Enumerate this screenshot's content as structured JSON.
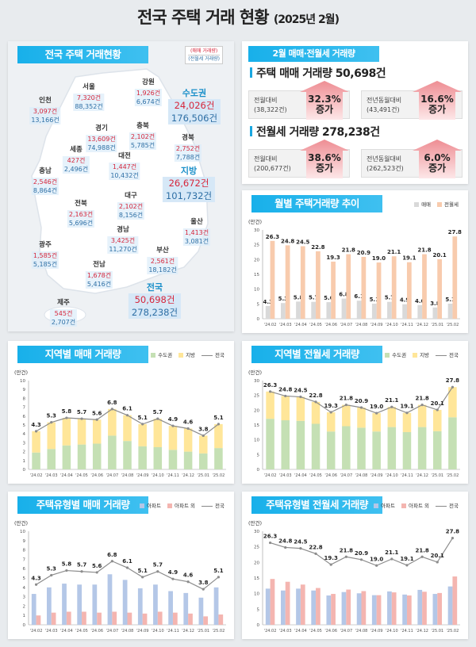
{
  "title": {
    "main": "전국 주택 거래 현황",
    "sub": "(2025년 2월)"
  },
  "map_panel": {
    "banner": "전국 주택 거래현황",
    "legend_sale": "(매매 거래량)",
    "legend_rent": "(전월세 거래량)",
    "regions": [
      {
        "name": "인천",
        "sale": "3,097건",
        "rent": "13,166건"
      },
      {
        "name": "서울",
        "sale": "7,320건",
        "rent": "88,352건"
      },
      {
        "name": "강원",
        "sale": "1,926건",
        "rent": "6,674건"
      },
      {
        "name": "경기",
        "sale": "13,609건",
        "rent": "74,988건"
      },
      {
        "name": "충북",
        "sale": "2,102건",
        "rent": "5,785건"
      },
      {
        "name": "경북",
        "sale": "2,752건",
        "rent": "7,788건"
      },
      {
        "name": "세종",
        "sale": "427건",
        "rent": "2,496건"
      },
      {
        "name": "대전",
        "sale": "1,447건",
        "rent": "10,432건"
      },
      {
        "name": "충남",
        "sale": "2,546건",
        "rent": "8,864건"
      },
      {
        "name": "대구",
        "sale": "2,102건",
        "rent": "8,156건"
      },
      {
        "name": "전북",
        "sale": "2,163건",
        "rent": "5,696건"
      },
      {
        "name": "울산",
        "sale": "1,413건",
        "rent": "3,081건"
      },
      {
        "name": "경남",
        "sale": "3,425건",
        "rent": "11,270건"
      },
      {
        "name": "광주",
        "sale": "1,585건",
        "rent": "5,185건"
      },
      {
        "name": "부산",
        "sale": "2,561건",
        "rent": "18,182건"
      },
      {
        "name": "전남",
        "sale": "1,678건",
        "rent": "5,416건"
      },
      {
        "name": "제주",
        "sale": "545건",
        "rent": "2,707건"
      }
    ],
    "totals": [
      {
        "name": "수도권",
        "sale": "24,026건",
        "rent": "176,506건"
      },
      {
        "name": "지방",
        "sale": "26,672건",
        "rent": "101,732건"
      },
      {
        "name": "전국",
        "sale": "50,698건",
        "rent": "278,238건"
      }
    ]
  },
  "summary": {
    "banner": "2월 매매·전월세 거래량",
    "sale_heading": "주택 매매 거래량 50,698건",
    "rent_heading": "전월세 거래량 278,238건",
    "boxes": [
      {
        "label": "전월대비",
        "base": "(38,322건)",
        "pct": "32.3%",
        "dir": "증가"
      },
      {
        "label": "전년동월대비",
        "base": "(43,491건)",
        "pct": "16.6%",
        "dir": "증가"
      },
      {
        "label": "전월대비",
        "base": "(200,677건)",
        "pct": "38.6%",
        "dir": "증가"
      },
      {
        "label": "전년동월대비",
        "base": "(262,523건)",
        "pct": "6.0%",
        "dir": "증가"
      }
    ]
  },
  "colors": {
    "accent": "#18b0ea",
    "sale_red": "#d6263b",
    "rent_blue": "#2e6fa5",
    "arrow": "#f2a5a8"
  },
  "chart_data": [
    {
      "type": "bar",
      "title": "월별 주택거래량 추이",
      "ylabel": "(만건)",
      "ylim": [
        0,
        30
      ],
      "ystep": 5,
      "grid": false,
      "legend": "top-right",
      "categories": [
        "'24.02",
        "'24.03",
        "'24.04",
        "'24.05",
        "'24.06",
        "'24.07",
        "'24.08",
        "'24.09",
        "'24.10",
        "'24.11",
        "'24.12",
        "'25.01",
        "'25.02"
      ],
      "series": [
        {
          "name": "매매",
          "color": "#d9d9d9",
          "values": [
            4.3,
            5.3,
            5.8,
            5.7,
            5.6,
            6.8,
            6.1,
            5.1,
            5.7,
            4.9,
            4.6,
            3.8,
            5.1
          ]
        },
        {
          "name": "전월세",
          "color": "#f8cbad",
          "values": [
            26.3,
            24.8,
            24.5,
            22.8,
            19.3,
            21.8,
            20.9,
            19.0,
            21.1,
            19.1,
            21.8,
            20.1,
            27.8
          ]
        }
      ]
    },
    {
      "type": "stacked-bar+line",
      "title": "지역별 매매 거래량",
      "ylabel": "(만건)",
      "ylim": [
        0,
        10
      ],
      "ystep": 1,
      "grid": false,
      "legend": "top-right",
      "categories": [
        "'24.02",
        "'24.03",
        "'24.04",
        "'24.05",
        "'24.06",
        "'24.07",
        "'24.08",
        "'24.09",
        "'24.10",
        "'24.11",
        "'24.12",
        "'25.01",
        "'25.02"
      ],
      "series": [
        {
          "name": "수도권",
          "color": "#c5e0b4",
          "values": [
            1.9,
            2.3,
            2.7,
            2.8,
            2.9,
            3.8,
            3.2,
            2.6,
            2.5,
            2.2,
            2.0,
            1.8,
            2.4
          ]
        },
        {
          "name": "지방",
          "color": "#ffe699",
          "values": [
            2.4,
            3.0,
            3.1,
            2.9,
            2.7,
            3.0,
            2.9,
            2.5,
            3.2,
            2.7,
            2.6,
            2.0,
            2.7
          ]
        }
      ],
      "line": {
        "name": "전국",
        "color": "#8c8c8c",
        "values": [
          4.3,
          5.3,
          5.8,
          5.7,
          5.6,
          6.8,
          6.1,
          5.1,
          5.7,
          4.9,
          4.6,
          3.8,
          5.1
        ]
      }
    },
    {
      "type": "stacked-bar+line",
      "title": "지역별 전월세 거래량",
      "ylabel": "(만건)",
      "ylim": [
        0,
        30
      ],
      "ystep": 5,
      "grid": false,
      "legend": "top-right",
      "categories": [
        "'24.02",
        "'24.03",
        "'24.04",
        "'24.05",
        "'24.06",
        "'24.07",
        "'24.08",
        "'24.09",
        "'24.10",
        "'24.11",
        "'24.12",
        "'25.01",
        "'25.02"
      ],
      "series": [
        {
          "name": "수도권",
          "color": "#c5e0b4",
          "values": [
            17.1,
            16.6,
            16.4,
            15.4,
            12.8,
            14.6,
            14.1,
            12.8,
            14.3,
            12.6,
            14.3,
            12.9,
            17.6
          ]
        },
        {
          "name": "지방",
          "color": "#ffe699",
          "values": [
            9.2,
            8.2,
            8.1,
            7.4,
            6.5,
            7.2,
            6.8,
            6.2,
            6.8,
            6.5,
            7.5,
            7.2,
            10.2
          ]
        }
      ],
      "line": {
        "name": "전국",
        "color": "#8c8c8c",
        "values": [
          26.3,
          24.8,
          24.5,
          22.8,
          19.3,
          21.8,
          20.9,
          19.0,
          21.1,
          19.1,
          21.8,
          20.1,
          27.8
        ]
      }
    },
    {
      "type": "bar+line",
      "title": "주택유형별 매매 거래량",
      "ylabel": "(만건)",
      "ylim": [
        0,
        10
      ],
      "ystep": 1,
      "grid": false,
      "legend": "top-right",
      "categories": [
        "'24.02",
        "'24.03",
        "'24.04",
        "'24.05",
        "'24.06",
        "'24.07",
        "'24.08",
        "'24.09",
        "'24.10",
        "'24.11",
        "'24.12",
        "'25.01",
        "'25.02"
      ],
      "series": [
        {
          "name": "아파트",
          "color": "#b4c7e7",
          "values": [
            3.3,
            4.0,
            4.4,
            4.3,
            4.3,
            5.4,
            4.8,
            3.9,
            4.3,
            3.6,
            3.4,
            2.9,
            4.0
          ]
        },
        {
          "name": "아파트 외",
          "color": "#f4b5b0",
          "values": [
            1.0,
            1.3,
            1.4,
            1.4,
            1.3,
            1.4,
            1.3,
            1.2,
            1.4,
            1.3,
            1.2,
            0.9,
            1.1
          ]
        }
      ],
      "line": {
        "name": "전국",
        "color": "#8c8c8c",
        "values": [
          4.3,
          5.3,
          5.8,
          5.7,
          5.6,
          6.8,
          6.1,
          5.1,
          5.7,
          4.9,
          4.6,
          3.8,
          5.1
        ]
      }
    },
    {
      "type": "bar+line",
      "title": "주택유형별 전월세 거래량",
      "ylabel": "(만건)",
      "ylim": [
        0,
        30
      ],
      "ystep": 5,
      "grid": false,
      "legend": "top-right",
      "categories": [
        "'24.02",
        "'24.03",
        "'24.04",
        "'24.05",
        "'24.06",
        "'24.07",
        "'24.08",
        "'24.09",
        "'24.10",
        "'24.11",
        "'24.12",
        "'25.01",
        "'25.02"
      ],
      "series": [
        {
          "name": "아파트",
          "color": "#b4c7e7",
          "values": [
            11.6,
            11.0,
            11.6,
            11.0,
            9.4,
            10.5,
            10.1,
            9.5,
            10.7,
            9.7,
            11.2,
            9.9,
            12.3
          ]
        },
        {
          "name": "아파트 외",
          "color": "#f4b5b0",
          "values": [
            14.7,
            13.8,
            12.9,
            11.8,
            9.9,
            11.3,
            10.8,
            9.5,
            10.4,
            9.4,
            10.6,
            10.2,
            15.5
          ]
        }
      ],
      "line": {
        "name": "전국",
        "color": "#8c8c8c",
        "values": [
          26.3,
          24.8,
          24.5,
          22.8,
          19.3,
          21.8,
          20.9,
          19.0,
          21.1,
          19.1,
          21.8,
          20.1,
          27.8
        ]
      }
    }
  ]
}
